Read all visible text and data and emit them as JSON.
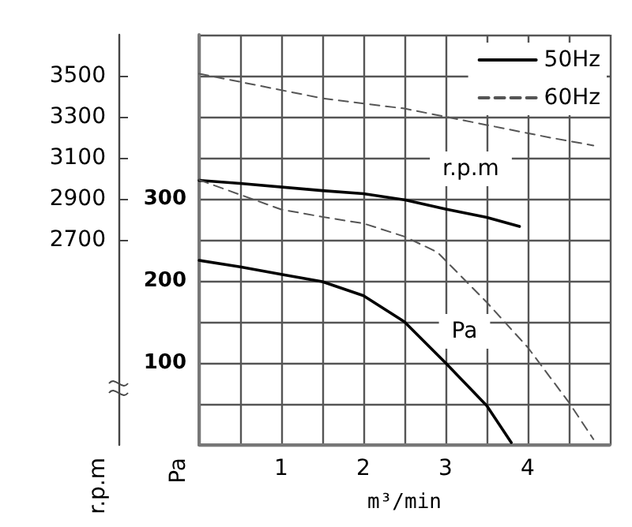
{
  "chart_data": {
    "type": "line",
    "xlabel": "m³/min",
    "ylabel": "Pa",
    "y2label": "r.p.m",
    "xlim": [
      0,
      5
    ],
    "xticks": [
      {
        "value": 0,
        "label": null
      },
      {
        "value": 0.5,
        "label": null
      },
      1,
      {
        "value": 1.5,
        "label": null
      },
      2,
      {
        "value": 2.5,
        "label": null
      },
      3,
      {
        "value": 3.5,
        "label": null
      },
      4,
      {
        "value": 4.5,
        "label": null
      },
      {
        "value": 5,
        "label": null
      }
    ],
    "ylim": [
      0,
      500
    ],
    "yticks": [
      {
        "value": 0,
        "label": null
      },
      {
        "value": 50,
        "label": null
      },
      100,
      {
        "value": 150,
        "label": null
      },
      200,
      {
        "value": 250,
        "label": null
      },
      300,
      {
        "value": 350,
        "label": null
      },
      {
        "value": 400,
        "label": null
      },
      {
        "value": 450,
        "label": null
      },
      {
        "value": 500,
        "label": null
      }
    ],
    "y2lim": [
      1700,
      3700
    ],
    "y2ticks": [
      2700,
      2900,
      3100,
      3300,
      3500
    ],
    "grid": true,
    "legend": "top right",
    "annotations": [
      "r.p.m",
      "Pa"
    ],
    "series": [
      {
        "name": "50Hz",
        "color": "#000000",
        "line_style": "solid",
        "axis": "y2",
        "x": [
          0,
          0.5,
          1.5,
          2,
          2.5,
          3,
          3.5,
          3.9
        ],
        "values": [
          2990,
          2975,
          2940,
          2925,
          2895,
          2850,
          2810,
          2765
        ]
      },
      {
        "name": "60Hz",
        "color": "#555555",
        "line_style": "dashed",
        "axis": "y2",
        "x": [
          0,
          0.5,
          1.5,
          2.5,
          3,
          3.5,
          4.25,
          4.8
        ],
        "values": [
          3510,
          3470,
          3390,
          3340,
          3300,
          3260,
          3200,
          3160
        ]
      },
      {
        "color": "#000000",
        "line_style": "solid",
        "x": [
          0,
          0.5,
          1,
          1.5,
          2,
          2.5,
          3,
          3.5,
          3.8
        ],
        "values": [
          225,
          217,
          208,
          199,
          182,
          150,
          100,
          48,
          3
        ]
      },
      {
        "color": "#555555",
        "line_style": "dashed",
        "x": [
          0,
          0.5,
          1,
          1.5,
          2,
          2.5,
          2.9,
          3.5,
          4,
          4.5,
          4.8
        ],
        "values": [
          323,
          305,
          287,
          278,
          270,
          254,
          235,
          174,
          119,
          52,
          7
        ]
      }
    ]
  }
}
